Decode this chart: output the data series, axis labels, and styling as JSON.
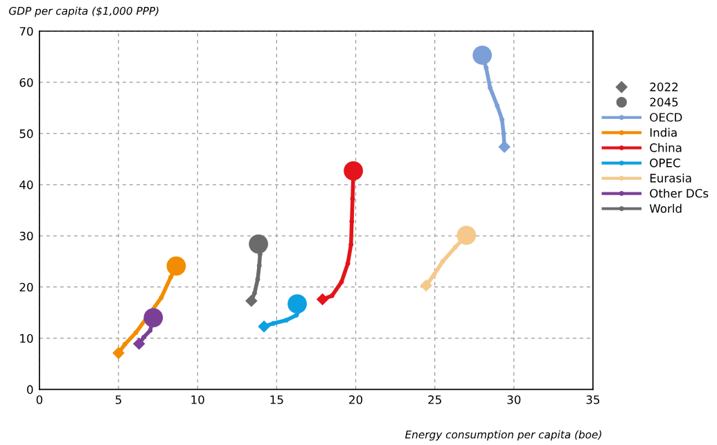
{
  "chart_data": {
    "type": "line",
    "xlabel": "Energy consumption per capita (boe)",
    "ylabel": "GDP per capita ($1,000 PPP)",
    "xlim": [
      0,
      35
    ],
    "ylim": [
      0,
      70
    ],
    "xticks": [
      0,
      5,
      10,
      15,
      20,
      25,
      30,
      35
    ],
    "yticks": [
      0,
      10,
      20,
      30,
      40,
      50,
      60,
      70
    ],
    "grid": true,
    "legend": "right",
    "marker": "circle",
    "line_style": "solid",
    "series": [
      {
        "name": "2022",
        "type": "scatter",
        "marker": "diamond",
        "color": "#6b6b6b",
        "x": [
          29.4,
          5.0,
          17.9,
          14.2,
          24.45,
          6.3,
          13.4
        ],
        "values": [
          47.4,
          7.1,
          17.6,
          12.3,
          20.3,
          8.9,
          17.3
        ],
        "colors": [
          "#7b9fd6",
          "#f28c00",
          "#e3141b",
          "#0da0e0",
          "#f5c98b",
          "#7c3f98",
          "#6b6b6b"
        ]
      },
      {
        "name": "2045",
        "type": "scatter",
        "marker": "circle",
        "color": "#6b6b6b",
        "x": [
          28.0,
          8.65,
          19.85,
          16.3,
          27.0,
          7.2,
          13.85
        ],
        "values": [
          65.3,
          24.1,
          42.7,
          16.7,
          30.1,
          14.0,
          28.4
        ],
        "colors": [
          "#7b9fd6",
          "#f28c00",
          "#e3141b",
          "#0da0e0",
          "#f5c98b",
          "#7c3f98",
          "#6b6b6b"
        ]
      },
      {
        "name": "OECD",
        "color": "#7b9fd6",
        "x": [
          29.4,
          29.35,
          29.25,
          28.95,
          28.5,
          28.25,
          28.0
        ],
        "values": [
          47.4,
          50.0,
          52.7,
          55.4,
          58.9,
          62.8,
          65.3
        ]
      },
      {
        "name": "India",
        "color": "#f28c00",
        "x": [
          5.0,
          5.4,
          6.1,
          7.7,
          8.3,
          8.65
        ],
        "values": [
          7.1,
          8.8,
          11.1,
          17.9,
          21.9,
          24.1
        ]
      },
      {
        "name": "China",
        "color": "#e3141b",
        "x": [
          17.9,
          18.5,
          19.1,
          19.5,
          19.7,
          19.75,
          19.8,
          19.85
        ],
        "values": [
          17.6,
          18.3,
          21.0,
          24.6,
          28.3,
          32.8,
          37.2,
          42.7
        ]
      },
      {
        "name": "OPEC",
        "color": "#0da0e0",
        "x": [
          14.2,
          14.8,
          15.6,
          16.25,
          16.45,
          16.3
        ],
        "values": [
          12.3,
          12.9,
          13.5,
          14.5,
          15.6,
          16.7
        ]
      },
      {
        "name": "Eurasia",
        "color": "#f5c98b",
        "x": [
          24.45,
          24.95,
          25.5,
          26.3,
          27.0
        ],
        "values": [
          20.3,
          22.4,
          25.0,
          27.8,
          30.1
        ]
      },
      {
        "name": "Other DCs",
        "color": "#7c3f98",
        "x": [
          6.3,
          6.6,
          7.0,
          7.2
        ],
        "values": [
          8.9,
          10.2,
          11.5,
          14.0
        ]
      },
      {
        "name": "World",
        "color": "#6b6b6b",
        "x": [
          13.4,
          13.6,
          13.8,
          13.9,
          13.95,
          13.85
        ],
        "values": [
          17.3,
          18.8,
          21.5,
          24.2,
          26.4,
          28.4
        ]
      }
    ]
  }
}
